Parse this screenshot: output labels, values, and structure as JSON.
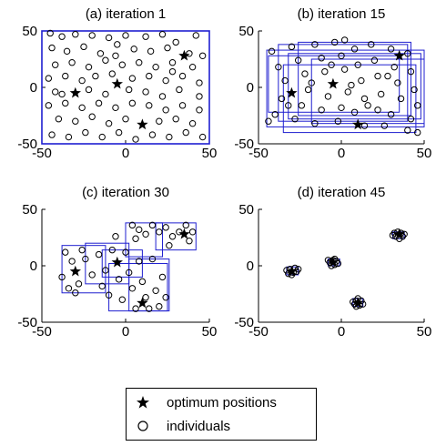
{
  "chart_data": [
    {
      "type": "scatter",
      "title": "(a) iteration 1",
      "xlim": [
        -50,
        50
      ],
      "ylim": [
        -50,
        50
      ],
      "xticks": [
        -50,
        0,
        50
      ],
      "yticks": [
        -50,
        0,
        50
      ],
      "optima": [
        [
          -30,
          -5
        ],
        [
          -5,
          3
        ],
        [
          10,
          -33
        ],
        [
          35,
          28
        ]
      ],
      "individuals": [
        [
          -45,
          48
        ],
        [
          -38,
          45
        ],
        [
          -30,
          47
        ],
        [
          -20,
          46
        ],
        [
          -10,
          44
        ],
        [
          0,
          46
        ],
        [
          12,
          45
        ],
        [
          22,
          47
        ],
        [
          30,
          40
        ],
        [
          42,
          46
        ],
        [
          -44,
          35
        ],
        [
          -35,
          32
        ],
        [
          -25,
          36
        ],
        [
          -15,
          30
        ],
        [
          -5,
          38
        ],
        [
          5,
          34
        ],
        [
          15,
          32
        ],
        [
          25,
          35
        ],
        [
          38,
          30
        ],
        [
          46,
          28
        ],
        [
          -42,
          20
        ],
        [
          -32,
          22
        ],
        [
          -22,
          18
        ],
        [
          -12,
          24
        ],
        [
          -2,
          20
        ],
        [
          8,
          22
        ],
        [
          18,
          18
        ],
        [
          28,
          22
        ],
        [
          40,
          18
        ],
        [
          -46,
          8
        ],
        [
          -36,
          10
        ],
        [
          -26,
          6
        ],
        [
          -18,
          10
        ],
        [
          -8,
          12
        ],
        [
          4,
          8
        ],
        [
          14,
          10
        ],
        [
          24,
          6
        ],
        [
          34,
          10
        ],
        [
          44,
          4
        ],
        [
          -42,
          -4
        ],
        [
          -22,
          -2
        ],
        [
          -12,
          -6
        ],
        [
          2,
          -2
        ],
        [
          12,
          -4
        ],
        [
          22,
          -8
        ],
        [
          32,
          -2
        ],
        [
          44,
          -8
        ],
        [
          -46,
          -16
        ],
        [
          -36,
          -14
        ],
        [
          -26,
          -18
        ],
        [
          -16,
          -14
        ],
        [
          -6,
          -18
        ],
        [
          4,
          -14
        ],
        [
          14,
          -16
        ],
        [
          24,
          -20
        ],
        [
          34,
          -16
        ],
        [
          44,
          -20
        ],
        [
          -40,
          -28
        ],
        [
          -30,
          -30
        ],
        [
          -20,
          -26
        ],
        [
          -10,
          -32
        ],
        [
          0,
          -28
        ],
        [
          20,
          -30
        ],
        [
          30,
          -28
        ],
        [
          40,
          -32
        ],
        [
          -44,
          -42
        ],
        [
          -34,
          -44
        ],
        [
          -24,
          -40
        ],
        [
          -14,
          -44
        ],
        [
          -4,
          -40
        ],
        [
          6,
          -46
        ],
        [
          16,
          -42
        ],
        [
          26,
          -44
        ],
        [
          36,
          -40
        ],
        [
          46,
          -44
        ],
        [
          -38,
          -6
        ],
        [
          28,
          14
        ],
        [
          -6,
          28
        ]
      ],
      "boxes": [
        [
          -50,
          -50,
          50,
          50
        ]
      ]
    },
    {
      "type": "scatter",
      "title": "(b) iteration 15",
      "xlim": [
        -50,
        50
      ],
      "ylim": [
        -50,
        50
      ],
      "xticks": [
        -50,
        0,
        50
      ],
      "yticks": [
        -50,
        0,
        50
      ],
      "optima": [
        [
          -30,
          -5
        ],
        [
          -5,
          3
        ],
        [
          10,
          -33
        ],
        [
          35,
          28
        ]
      ],
      "individuals": [
        [
          -42,
          32
        ],
        [
          -38,
          18
        ],
        [
          -34,
          6
        ],
        [
          -36,
          -10
        ],
        [
          -40,
          -24
        ],
        [
          -30,
          36
        ],
        [
          -26,
          24
        ],
        [
          -22,
          12
        ],
        [
          -20,
          -2
        ],
        [
          -24,
          -16
        ],
        [
          -28,
          -28
        ],
        [
          -16,
          38
        ],
        [
          -12,
          26
        ],
        [
          -10,
          14
        ],
        [
          -8,
          -8
        ],
        [
          -12,
          -20
        ],
        [
          -16,
          -32
        ],
        [
          -4,
          40
        ],
        [
          0,
          28
        ],
        [
          2,
          16
        ],
        [
          4,
          -4
        ],
        [
          0,
          -18
        ],
        [
          -2,
          -30
        ],
        [
          8,
          34
        ],
        [
          10,
          20
        ],
        [
          12,
          6
        ],
        [
          14,
          -10
        ],
        [
          8,
          -22
        ],
        [
          14,
          -34
        ],
        [
          18,
          38
        ],
        [
          20,
          24
        ],
        [
          22,
          10
        ],
        [
          24,
          -6
        ],
        [
          22,
          -20
        ],
        [
          26,
          -34
        ],
        [
          30,
          34
        ],
        [
          32,
          18
        ],
        [
          34,
          4
        ],
        [
          36,
          -10
        ],
        [
          30,
          -24
        ],
        [
          40,
          30
        ],
        [
          42,
          14
        ],
        [
          44,
          -2
        ],
        [
          46,
          -16
        ],
        [
          42,
          -28
        ],
        [
          46,
          -40
        ],
        [
          -44,
          -30
        ],
        [
          -6,
          20
        ],
        [
          6,
          2
        ],
        [
          -18,
          4
        ],
        [
          16,
          -16
        ],
        [
          28,
          10
        ],
        [
          -32,
          -16
        ],
        [
          2,
          42
        ],
        [
          40,
          -38
        ]
      ],
      "boxes": [
        [
          -45,
          -35,
          50,
          33
        ],
        [
          -38,
          -30,
          40,
          38
        ],
        [
          -32,
          -28,
          48,
          30
        ],
        [
          -26,
          -25,
          42,
          40
        ],
        [
          -44,
          -22,
          35,
          28
        ],
        [
          -35,
          -40,
          45,
          20
        ],
        [
          -18,
          -32,
          50,
          25
        ]
      ]
    },
    {
      "type": "scatter",
      "title": "(c) iteration 30",
      "xlim": [
        -50,
        50
      ],
      "ylim": [
        -50,
        50
      ],
      "xticks": [
        -50,
        0,
        50
      ],
      "yticks": [
        -50,
        0,
        50
      ],
      "optima": [
        [
          -30,
          -5
        ],
        [
          -5,
          3
        ],
        [
          10,
          -33
        ],
        [
          35,
          28
        ]
      ],
      "individuals": [
        [
          -36,
          12
        ],
        [
          -32,
          4
        ],
        [
          -38,
          -10
        ],
        [
          -28,
          -16
        ],
        [
          -24,
          6
        ],
        [
          -20,
          -8
        ],
        [
          -34,
          -20
        ],
        [
          -26,
          14
        ],
        [
          -16,
          10
        ],
        [
          -12,
          -4
        ],
        [
          -14,
          -18
        ],
        [
          -8,
          14
        ],
        [
          -4,
          -12
        ],
        [
          -10,
          -26
        ],
        [
          0,
          12
        ],
        [
          2,
          -6
        ],
        [
          4,
          -20
        ],
        [
          -2,
          -30
        ],
        [
          6,
          24
        ],
        [
          8,
          4
        ],
        [
          10,
          -14
        ],
        [
          12,
          -28
        ],
        [
          14,
          -38
        ],
        [
          16,
          6
        ],
        [
          18,
          -22
        ],
        [
          20,
          -36
        ],
        [
          22,
          -10
        ],
        [
          6,
          -38
        ],
        [
          4,
          36
        ],
        [
          8,
          32
        ],
        [
          12,
          28
        ],
        [
          16,
          36
        ],
        [
          20,
          30
        ],
        [
          24,
          34
        ],
        [
          28,
          26
        ],
        [
          32,
          30
        ],
        [
          36,
          36
        ],
        [
          38,
          22
        ],
        [
          40,
          30
        ],
        [
          26,
          18
        ],
        [
          -30,
          -24
        ],
        [
          -6,
          26
        ],
        [
          24,
          -28
        ]
      ],
      "boxes": [
        [
          -38,
          -24,
          -12,
          18
        ],
        [
          -24,
          -16,
          2,
          20
        ],
        [
          -14,
          -10,
          10,
          14
        ],
        [
          -10,
          -40,
          25,
          2
        ],
        [
          2,
          -40,
          26,
          6
        ],
        [
          0,
          8,
          22,
          38
        ],
        [
          18,
          14,
          42,
          38
        ]
      ]
    },
    {
      "type": "scatter",
      "title": "(d) iteration 45",
      "xlim": [
        -50,
        50
      ],
      "ylim": [
        -50,
        50
      ],
      "xticks": [
        -50,
        0,
        50
      ],
      "yticks": [
        -50,
        0,
        50
      ],
      "optima": [
        [
          -30,
          -5
        ],
        [
          -5,
          3
        ],
        [
          10,
          -33
        ],
        [
          35,
          28
        ]
      ],
      "individuals": [
        [
          -31,
          -3
        ],
        [
          -29,
          -6
        ],
        [
          -28,
          -2
        ],
        [
          -32,
          -7
        ],
        [
          -27,
          -5
        ],
        [
          -30,
          -8
        ],
        [
          -26,
          -3
        ],
        [
          -33,
          -4
        ],
        [
          -5,
          5
        ],
        [
          -4,
          1
        ],
        [
          -7,
          3
        ],
        [
          -3,
          4
        ],
        [
          -6,
          0
        ],
        [
          -2,
          2
        ],
        [
          -8,
          5
        ],
        [
          -4,
          6
        ],
        [
          9,
          -31
        ],
        [
          11,
          -35
        ],
        [
          8,
          -34
        ],
        [
          12,
          -31
        ],
        [
          10,
          -29
        ],
        [
          7,
          -32
        ],
        [
          13,
          -34
        ],
        [
          9,
          -36
        ],
        [
          33,
          26
        ],
        [
          36,
          29
        ],
        [
          34,
          30
        ],
        [
          37,
          26
        ],
        [
          32,
          29
        ],
        [
          35,
          24
        ],
        [
          31,
          27
        ],
        [
          38,
          28
        ]
      ],
      "boxes": [
        [
          -33,
          -8,
          -26,
          -1
        ],
        [
          -8,
          0,
          -1,
          6
        ],
        [
          7,
          -36,
          13,
          -29
        ],
        [
          31,
          24,
          38,
          30
        ]
      ]
    }
  ],
  "legend": {
    "optimum_label": "optimum positions",
    "individuals_label": "individuals"
  },
  "colors": {
    "box": "#1f1fd0",
    "marker": "#000000"
  }
}
